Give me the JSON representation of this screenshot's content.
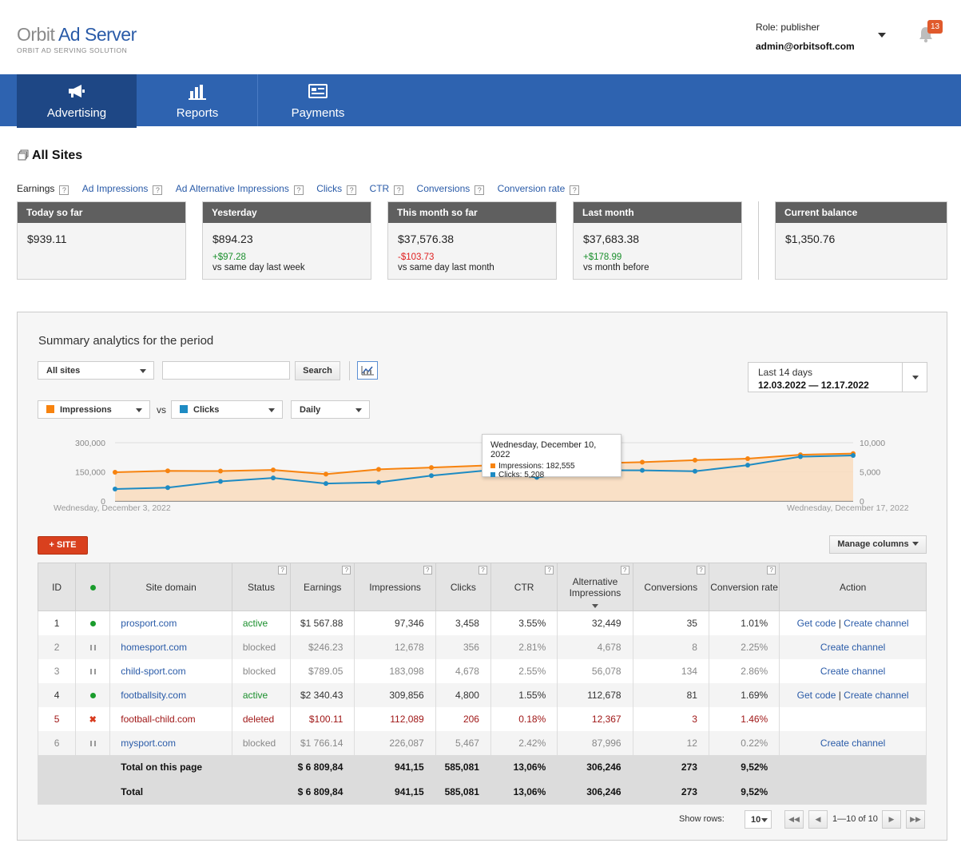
{
  "brand": {
    "name_part1": "Orbit",
    "name_part2": "Ad Server",
    "tagline": "ORBIT AD SERVING SOLUTION"
  },
  "user": {
    "role": "Role: publisher",
    "email": "admin@orbitsoft.com",
    "notifications": "13"
  },
  "nav": [
    {
      "label": "Advertising",
      "icon": "megaphone-icon",
      "active": true
    },
    {
      "label": "Reports",
      "icon": "bar-chart-icon",
      "active": false
    },
    {
      "label": "Payments",
      "icon": "payment-card-icon",
      "active": false
    }
  ],
  "page_title": "All Sites",
  "metric_tabs": [
    "Earnings",
    "Ad Impressions",
    "Ad Alternative Impressions",
    "Clicks",
    "CTR",
    "Conversions",
    "Conversion rate"
  ],
  "help_mark": "?",
  "cards": [
    {
      "title": "Today so far",
      "value": "$939.11",
      "delta": "",
      "note": ""
    },
    {
      "title": "Yesterday",
      "value": "$894.23",
      "delta": "+$97.28",
      "note": "vs same day last week"
    },
    {
      "title": "This month so far",
      "value": "$37,576.38",
      "delta": "-$103.73",
      "note": "vs same day last month"
    },
    {
      "title": "Last month",
      "value": "$37,683.38",
      "delta": "+$178.99",
      "note": "vs month before"
    },
    {
      "title": "Current balance",
      "value": "$1,350.76",
      "delta": "",
      "note": ""
    }
  ],
  "analytics": {
    "title": "Summary analytics for the period",
    "site_filter": "All sites",
    "search_button": "Search",
    "search_value": "",
    "date_label": "Last 14 days",
    "date_range": "12.03.2022 — 12.17.2022",
    "metric1": "Impressions",
    "vs": "vs",
    "metric2": "Clicks",
    "granularity": "Daily",
    "colors": {
      "impressions": "#f7830f",
      "clicks": "#1e8bc3",
      "accent_red": "#d9401e",
      "nav_blue": "#2e63b0"
    }
  },
  "chart_data": {
    "type": "line",
    "x_start_label": "Wednesday, December 3, 2022",
    "x_end_label": "Wednesday, December 17, 2022",
    "x": [
      "Dec 3",
      "Dec 4",
      "Dec 5",
      "Dec 6",
      "Dec 7",
      "Dec 8",
      "Dec 9",
      "Dec 10",
      "Dec 11",
      "Dec 12",
      "Dec 13",
      "Dec 14",
      "Dec 15",
      "Dec 16",
      "Dec 17"
    ],
    "left_axis": {
      "ylim": [
        0,
        300000
      ],
      "ticks": [
        "0",
        "150,000",
        "300,000"
      ]
    },
    "right_axis": {
      "ylim": [
        0,
        10000
      ],
      "ticks": [
        "0",
        "5,000",
        "10,000"
      ]
    },
    "series": [
      {
        "name": "Impressions",
        "axis": "left",
        "values": [
          148000,
          155000,
          154000,
          160000,
          138000,
          163000,
          172000,
          182555,
          195000,
          193000,
          200000,
          210000,
          218000,
          238000,
          244000
        ]
      },
      {
        "name": "Clicks",
        "axis": "right",
        "values": [
          2050,
          2300,
          3350,
          3950,
          3000,
          3200,
          4350,
          5208,
          4050,
          5300,
          5250,
          5100,
          6150,
          7600,
          7800
        ]
      }
    ],
    "tooltip": {
      "title": "Wednesday, December 10, 2022",
      "impressions": "Impressions: 182,555",
      "clicks": "Clicks: 5,208"
    },
    "grid": true
  },
  "add_site_label": "+ SITE",
  "manage_columns_label": "Manage columns",
  "table": {
    "headers": [
      "ID",
      "",
      "Site domain",
      "Status",
      "Earnings",
      "Impressions",
      "Clicks",
      "CTR",
      "Alternative Impressions",
      "Conversions",
      "Conversion rate",
      "Action"
    ],
    "rows": [
      {
        "id": "1",
        "state": "active",
        "domain": "prosport.com",
        "status": "active",
        "earnings": "$1 567.88",
        "impressions": "97,346",
        "clicks": "3,458",
        "ctr": "3.55%",
        "alt": "32,449",
        "conv": "35",
        "rate": "1.01%",
        "get_code": "Get code",
        "sep": " | ",
        "channel": "Create channel"
      },
      {
        "id": "2",
        "state": "blocked",
        "domain": "homesport.com",
        "status": "blocked",
        "earnings": "$246.23",
        "impressions": "12,678",
        "clicks": "356",
        "ctr": "2.81%",
        "alt": "4,678",
        "conv": "8",
        "rate": "2.25%",
        "get_code": "",
        "sep": "",
        "channel": "Create channel"
      },
      {
        "id": "3",
        "state": "blocked",
        "domain": "child-sport.com",
        "status": "blocked",
        "earnings": "$789.05",
        "impressions": "183,098",
        "clicks": "4,678",
        "ctr": "2.55%",
        "alt": "56,078",
        "conv": "134",
        "rate": "2.86%",
        "get_code": "",
        "sep": "",
        "channel": "Create channel"
      },
      {
        "id": "4",
        "state": "active",
        "domain": "footballsity.com",
        "status": "active",
        "earnings": "$2 340.43",
        "impressions": "309,856",
        "clicks": "4,800",
        "ctr": "1.55%",
        "alt": "112,678",
        "conv": "81",
        "rate": "1.69%",
        "get_code": "Get code",
        "sep": " | ",
        "channel": "Create channel"
      },
      {
        "id": "5",
        "state": "deleted",
        "domain": "football-child.com",
        "status": "deleted",
        "earnings": "$100.11",
        "impressions": "112,089",
        "clicks": "206",
        "ctr": "0.18%",
        "alt": "12,367",
        "conv": "3",
        "rate": "1.46%",
        "get_code": "",
        "sep": "",
        "channel": ""
      },
      {
        "id": "6",
        "state": "blocked",
        "domain": "mysport.com",
        "status": "blocked",
        "earnings": "$1 766.14",
        "impressions": "226,087",
        "clicks": "5,467",
        "ctr": "2.42%",
        "alt": "87,996",
        "conv": "12",
        "rate": "0.22%",
        "get_code": "",
        "sep": "",
        "channel": "Create channel"
      }
    ],
    "totals": [
      {
        "label": "Total on this page",
        "earnings": "$ 6 809,84",
        "impressions": "941,15",
        "clicks": "585,081",
        "ctr": "13,06%",
        "alt": "306,246",
        "conv": "273",
        "rate": "9,52%"
      },
      {
        "label": "Total",
        "earnings": "$ 6 809,84",
        "impressions": "941,15",
        "clicks": "585,081",
        "ctr": "13,06%",
        "alt": "306,246",
        "conv": "273",
        "rate": "9,52%"
      }
    ]
  },
  "pager": {
    "show_rows_label": "Show rows:",
    "rows_value": "10",
    "range": "1—10 of 10"
  }
}
